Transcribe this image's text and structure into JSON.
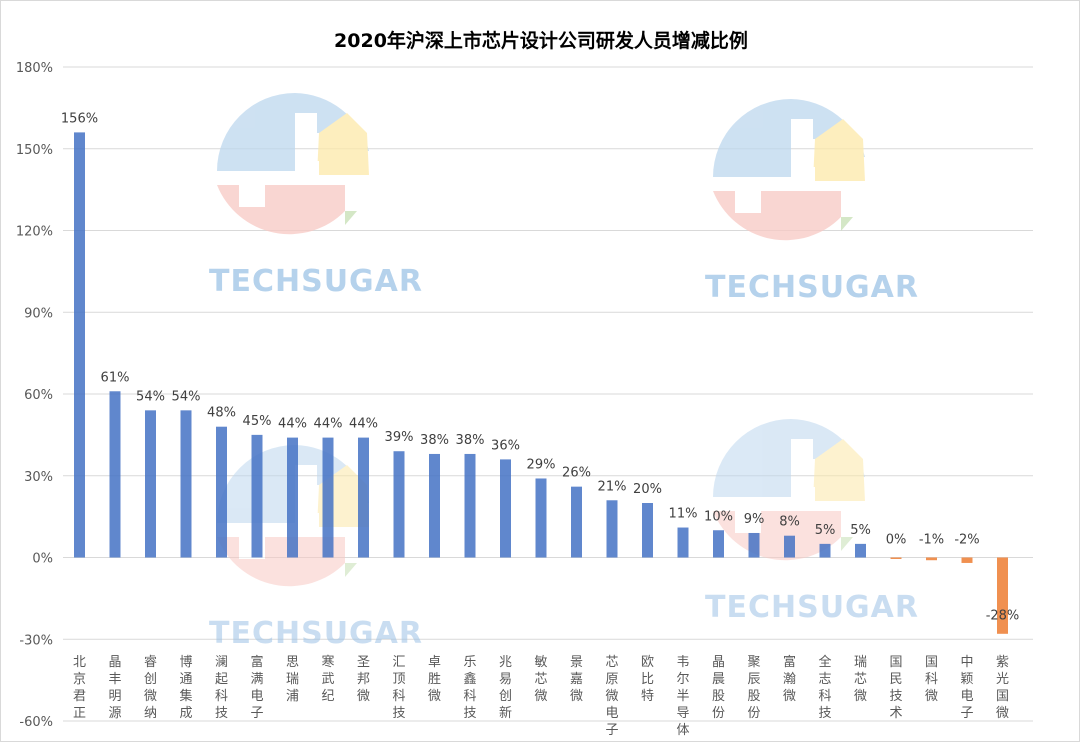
{
  "chart_data": {
    "type": "bar",
    "title": "2020年沪深上市芯片设计公司研发人员增减比例",
    "xlabel": "",
    "ylabel": "",
    "ylim": [
      -60,
      180
    ],
    "ytick_labels": [
      "-60%",
      "-30%",
      "0%",
      "30%",
      "60%",
      "90%",
      "120%",
      "150%",
      "180%"
    ],
    "ytick_values": [
      -60,
      -30,
      0,
      30,
      60,
      90,
      120,
      150,
      180
    ],
    "grid": true,
    "categories": [
      "北京君正",
      "晶丰明源",
      "睿创微纳",
      "博通集成",
      "澜起科技",
      "富满电子",
      "思瑞浦",
      "寒武纪",
      "圣邦微",
      "汇顶科技",
      "卓胜微",
      "乐鑫科技",
      "兆易创新",
      "敏芯微",
      "景嘉微",
      "芯原微电子",
      "欧比特",
      "韦尔半导体",
      "晶晨股份",
      "聚辰股份",
      "富瀚微",
      "全志科技",
      "瑞芯微",
      "国民技术",
      "国科微",
      "中颖电子",
      "紫光国微"
    ],
    "values": [
      156,
      61,
      54,
      54,
      48,
      45,
      44,
      44,
      44,
      39,
      38,
      38,
      36,
      29,
      26,
      21,
      20,
      11,
      10,
      9,
      8,
      5,
      5,
      0,
      -1,
      -2,
      -28
    ],
    "data_labels": [
      "156%",
      "61%",
      "54%",
      "54%",
      "48%",
      "45%",
      "44%",
      "44%",
      "44%",
      "39%",
      "38%",
      "38%",
      "36%",
      "29%",
      "26%",
      "21%",
      "20%",
      "11%",
      "10%",
      "9%",
      "8%",
      "5%",
      "5%",
      "0%",
      "-1%",
      "-2%",
      "-28%"
    ],
    "colors": {
      "positive": "#4472c4",
      "non_positive": "#ed7d31",
      "grid": "#d9d9d9"
    }
  },
  "watermark": {
    "text": "TECHSUGAR",
    "colors": {
      "blue": "#bdd7ee",
      "red": "#f8c9c4",
      "yellow": "#fde9a9",
      "green": "#c6e0b4"
    }
  }
}
